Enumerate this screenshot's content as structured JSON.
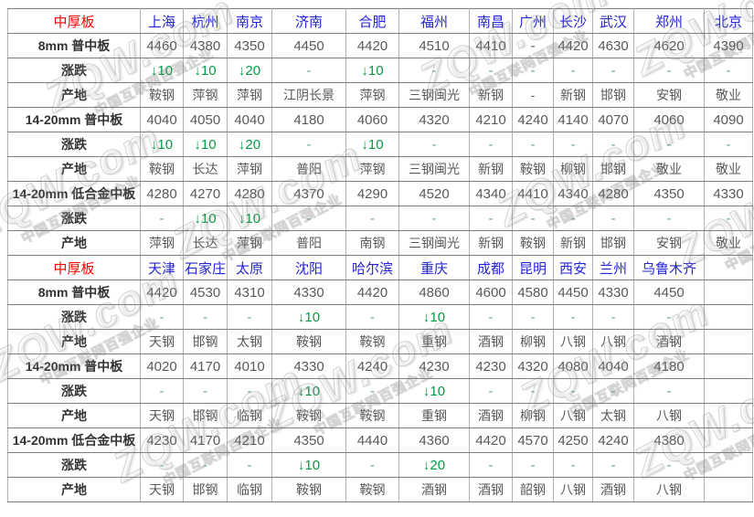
{
  "watermark": {
    "brand": "ZQW.com",
    "slogan": "中国互联网百强企业"
  },
  "sections": [
    {
      "title": "中厚板",
      "cities": [
        "上海",
        "杭州",
        "南京",
        "济南",
        "合肥",
        "福州",
        "南昌",
        "广州",
        "长沙",
        "武汉",
        "郑州",
        "北京"
      ],
      "rows": [
        {
          "label": "8mm 普中板",
          "type": "price",
          "values": [
            "4460",
            "4380",
            "4350",
            "4450",
            "4420",
            "4510",
            "4410",
            "-",
            "4420",
            "4630",
            "4620",
            "4390"
          ]
        },
        {
          "label": "涨跌",
          "type": "change",
          "values": [
            "↓10",
            "↓10",
            "↓20",
            "-",
            "↓10",
            "-",
            "-",
            "-",
            "-",
            "-",
            "-",
            "-"
          ]
        },
        {
          "label": "产地",
          "type": "origin",
          "values": [
            "鞍钢",
            "萍钢",
            "萍钢",
            "江阴长景",
            "萍钢",
            "三钢闽光",
            "新钢",
            "-",
            "新钢",
            "邯钢",
            "安钢",
            "敬业"
          ]
        },
        {
          "label": "14-20mm 普中板",
          "type": "price",
          "values": [
            "4040",
            "4050",
            "4040",
            "4180",
            "4060",
            "4320",
            "4210",
            "4240",
            "4140",
            "4070",
            "4060",
            "4090"
          ]
        },
        {
          "label": "涨跌",
          "type": "change",
          "values": [
            "↓10",
            "↓10",
            "↓20",
            "-",
            "↓10",
            "-",
            "-",
            "-",
            "-",
            "-",
            "-",
            "-"
          ]
        },
        {
          "label": "产地",
          "type": "origin",
          "values": [
            "鞍钢",
            "长达",
            "萍钢",
            "普阳",
            "萍钢",
            "三钢闽光",
            "新钢",
            "鞍钢",
            "柳钢",
            "邯钢",
            "敬业",
            "敬业"
          ]
        },
        {
          "label": "14-20mm 低合金中板",
          "type": "price",
          "values": [
            "4280",
            "4270",
            "4280",
            "4370",
            "4290",
            "4520",
            "4340",
            "4410",
            "4340",
            "4280",
            "4350",
            "4330"
          ]
        },
        {
          "label": "涨跌",
          "type": "change",
          "values": [
            "-",
            "↓10",
            "↓10",
            "-",
            "-",
            "-",
            "-",
            "-",
            "-",
            "-",
            "-",
            "-"
          ]
        },
        {
          "label": "产地",
          "type": "origin",
          "values": [
            "萍钢",
            "长达",
            "萍钢",
            "普阳",
            "南钢",
            "三钢闽光",
            "新钢",
            "鞍钢",
            "新钢",
            "邯钢",
            "安钢",
            "敬业"
          ]
        }
      ]
    },
    {
      "title": "中厚板",
      "cities": [
        "天津",
        "石家庄",
        "太原",
        "沈阳",
        "哈尔滨",
        "重庆",
        "成都",
        "昆明",
        "西安",
        "兰州",
        "乌鲁木齐",
        ""
      ],
      "rows": [
        {
          "label": "8mm 普中板",
          "type": "price",
          "values": [
            "4420",
            "4530",
            "4310",
            "4330",
            "4420",
            "4860",
            "4600",
            "4580",
            "4450",
            "4330",
            "4450",
            ""
          ]
        },
        {
          "label": "涨跌",
          "type": "change",
          "values": [
            "-",
            "-",
            "-",
            "↓10",
            "-",
            "↓10",
            "-",
            "-",
            "-",
            "-",
            "-",
            ""
          ]
        },
        {
          "label": "产地",
          "type": "origin",
          "values": [
            "天钢",
            "邯钢",
            "太钢",
            "鞍钢",
            "鞍钢",
            "重钢",
            "酒钢",
            "柳钢",
            "八钢",
            "八钢",
            "酒钢",
            ""
          ]
        },
        {
          "label": "14-20mm 普中板",
          "type": "price",
          "values": [
            "4020",
            "4170",
            "4010",
            "4330",
            "4240",
            "4230",
            "4230",
            "4320",
            "4080",
            "4040",
            "4180",
            ""
          ]
        },
        {
          "label": "涨跌",
          "type": "change",
          "values": [
            "-",
            "-",
            "-",
            "↓10",
            "-",
            "↓10",
            "-",
            "-",
            "-",
            "-",
            "-",
            ""
          ]
        },
        {
          "label": "产地",
          "type": "origin",
          "values": [
            "天钢",
            "邯钢",
            "临钢",
            "鞍钢",
            "鞍钢",
            "重钢",
            "酒钢",
            "柳钢",
            "八钢",
            "太钢",
            "八钢",
            ""
          ]
        },
        {
          "label": "14-20mm 低合金中板",
          "type": "price",
          "values": [
            "4230",
            "4170",
            "4210",
            "4350",
            "4440",
            "4360",
            "4420",
            "4570",
            "4250",
            "4240",
            "4380",
            ""
          ]
        },
        {
          "label": "涨跌",
          "type": "change",
          "values": [
            "-",
            "-",
            "-",
            "↓10",
            "-",
            "↓20",
            "-",
            "-",
            "-",
            "-",
            "-",
            ""
          ]
        },
        {
          "label": "产地",
          "type": "origin",
          "values": [
            "天钢",
            "邯钢",
            "临钢",
            "鞍钢",
            "鞍钢",
            "酒钢",
            "酒钢",
            "韶钢",
            "八钢",
            "酒钢",
            "八钢",
            ""
          ]
        }
      ]
    }
  ],
  "colors": {
    "section_title": "#ff0000",
    "city_link": "#2424d6",
    "value_text": "#595959",
    "change_down": "#089944",
    "border_h": "#7d7d7d",
    "border_v": "#b2b2b2"
  }
}
